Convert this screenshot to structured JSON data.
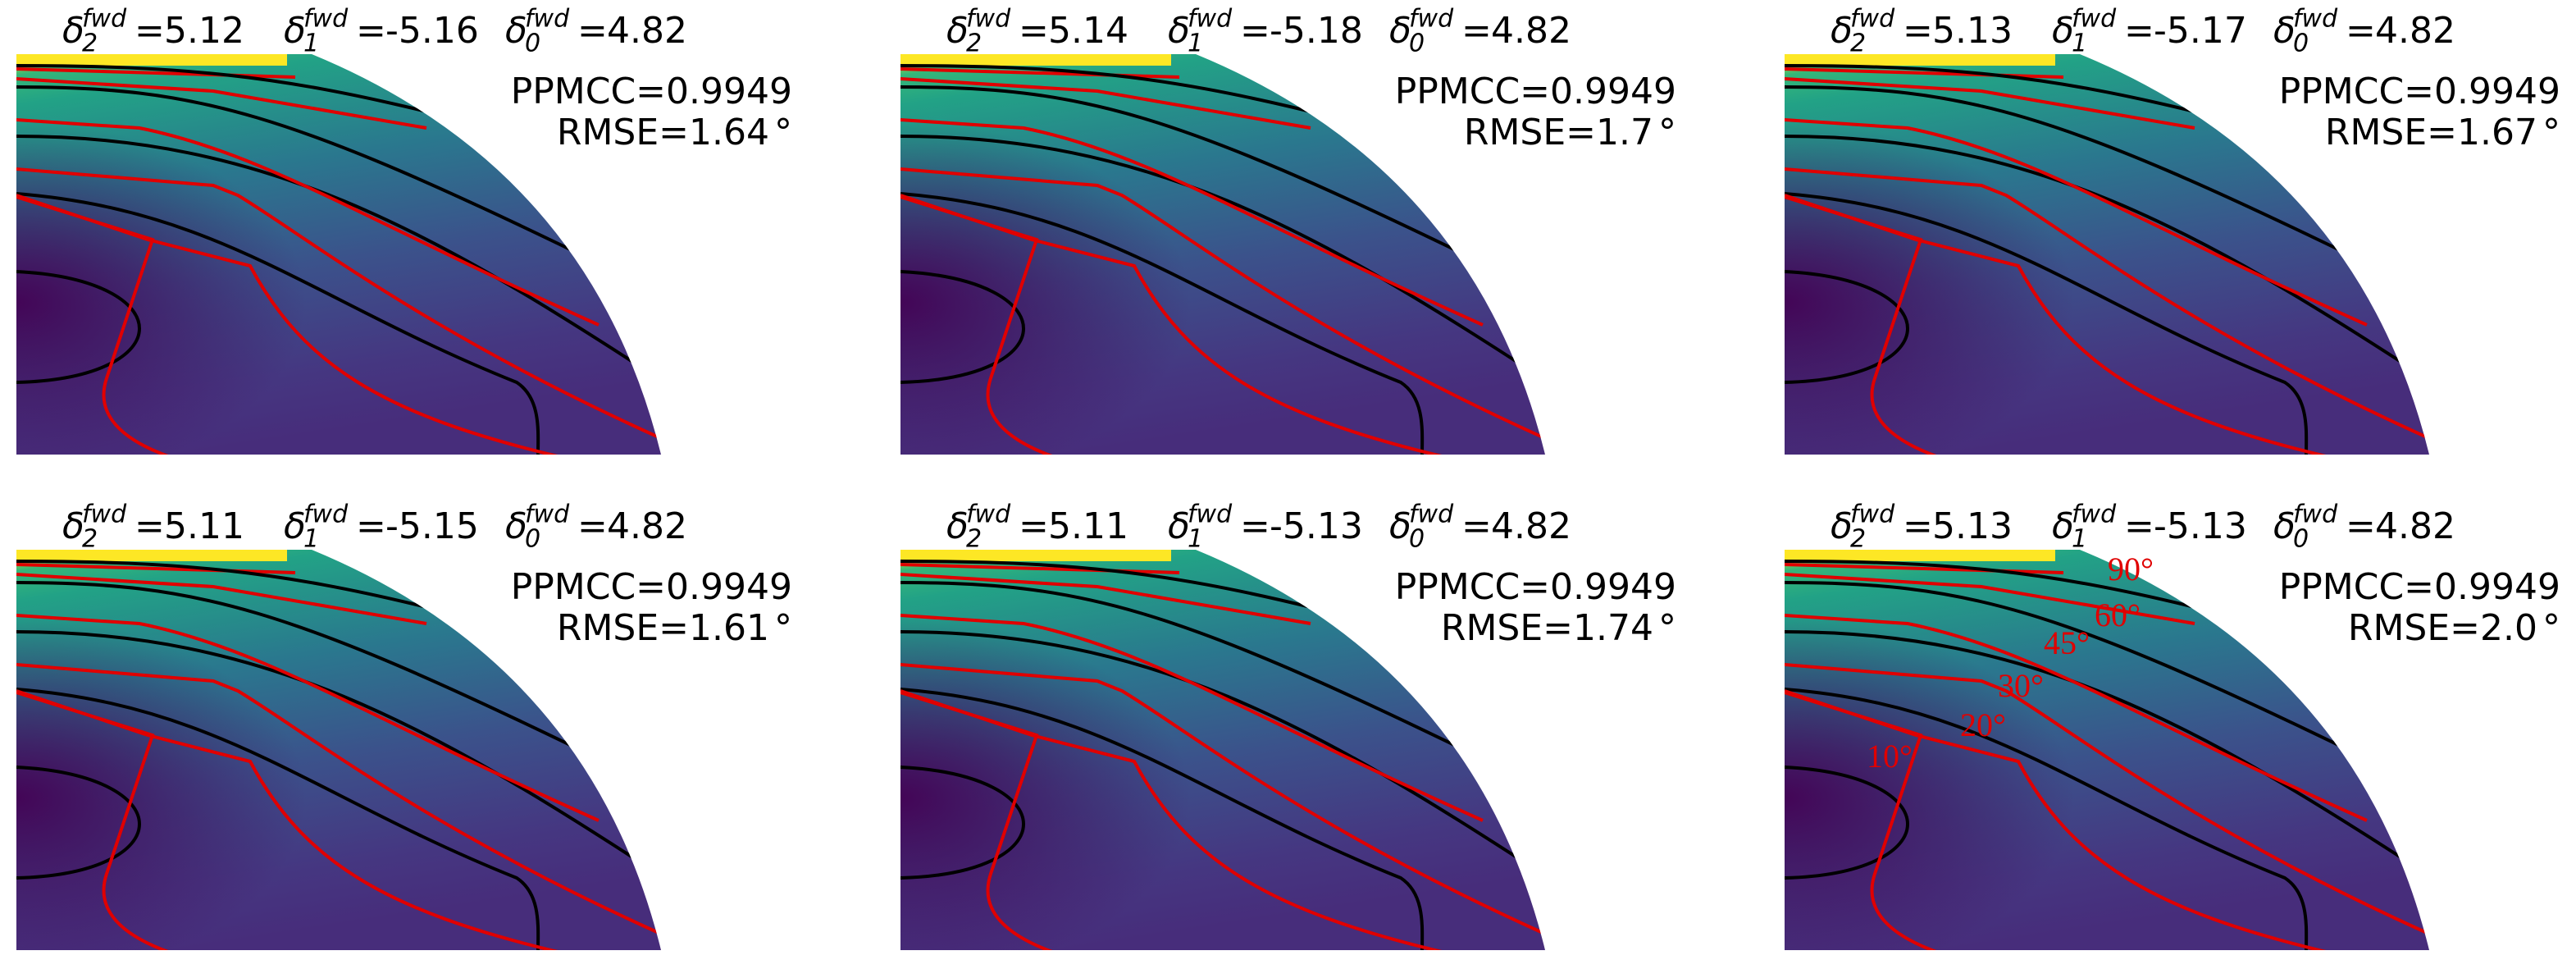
{
  "symbol": "δ",
  "superscript": "fwd",
  "equals": "=",
  "subscripts": [
    "2",
    "1",
    "0"
  ],
  "ppmcc_label": "PPMCC=",
  "rmse_label": "RMSE=",
  "degree": "°",
  "panels": [
    {
      "deltas": [
        5.12,
        -5.16,
        4.82
      ],
      "ppmcc": 0.9949,
      "rmse": 1.64
    },
    {
      "deltas": [
        5.14,
        -5.18,
        4.82
      ],
      "ppmcc": 0.9949,
      "rmse": 1.7
    },
    {
      "deltas": [
        5.13,
        -5.17,
        4.82
      ],
      "ppmcc": 0.9949,
      "rmse": 1.67
    },
    {
      "deltas": [
        5.11,
        -5.15,
        4.82
      ],
      "ppmcc": 0.9949,
      "rmse": 1.61
    },
    {
      "deltas": [
        5.11,
        -5.13,
        4.82
      ],
      "ppmcc": 0.9949,
      "rmse": 1.74
    },
    {
      "deltas": [
        5.13,
        -5.13,
        4.82
      ],
      "ppmcc": 0.9949,
      "rmse": 2.0,
      "rmse_text": "2.0",
      "contour_labels": [
        "90°",
        "60°",
        "45°",
        "30°",
        "20°",
        "10°"
      ]
    }
  ]
}
